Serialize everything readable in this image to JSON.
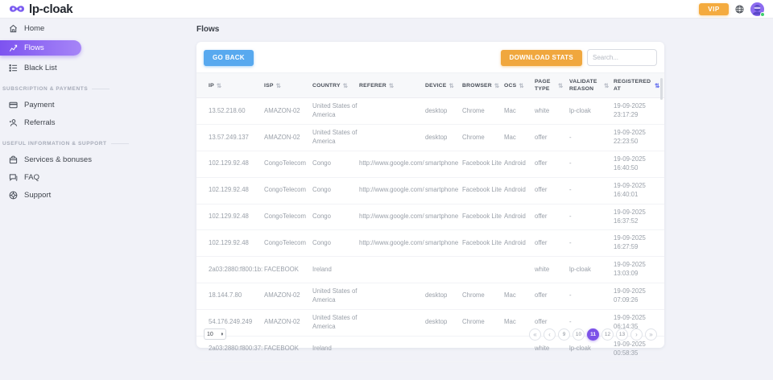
{
  "colors": {
    "accent_purple": "#7c52e8",
    "button_blue": "#58a9ef",
    "button_orange": "#f0a73e",
    "active_sort": "#5b67ee",
    "status_green": "#3ecf6e"
  },
  "brand": {
    "name": "lp-cloak"
  },
  "topbar": {
    "vip_label": "VIP"
  },
  "sidebar": {
    "nav": [
      {
        "label": "Home"
      },
      {
        "label": "Flows"
      },
      {
        "label": "Black List"
      }
    ],
    "sections": [
      {
        "title": "SUBSCRIPTION & PAYMENTS",
        "items": [
          {
            "label": "Payment"
          },
          {
            "label": "Referrals"
          }
        ]
      },
      {
        "title": "USEFUL INFORMATION & SUPPORT",
        "items": [
          {
            "label": "Services & bonuses"
          },
          {
            "label": "FAQ"
          },
          {
            "label": "Support"
          }
        ]
      }
    ]
  },
  "page": {
    "title": "Flows"
  },
  "toolbar": {
    "go_back_label": "GO BACK",
    "download_stats_label": "DOWNLOAD STATS",
    "search_placeholder": "Search..."
  },
  "table": {
    "sort_icon": "⇅",
    "columns": [
      {
        "label": "IP",
        "sorted": false
      },
      {
        "label": "ISP",
        "sorted": false
      },
      {
        "label": "COUNTRY",
        "sorted": false
      },
      {
        "label": "REFERER",
        "sorted": false
      },
      {
        "label": "DEVICE",
        "sorted": false
      },
      {
        "label": "BROWSER",
        "sorted": false
      },
      {
        "label": "OCS",
        "sorted": false
      },
      {
        "label": "PAGE TYPE",
        "sorted": false
      },
      {
        "label": "VALIDATE REASON",
        "sorted": false
      },
      {
        "label": "REGISTERED AT",
        "sorted": true
      }
    ],
    "rows": [
      {
        "ip": "13.52.218.60",
        "isp": "AMAZON-02",
        "country": "United States of America",
        "referer": "",
        "device": "desktop",
        "browser": "Chrome",
        "ocs": "Mac",
        "page_type": "white",
        "validate_reason": "lp-cloak",
        "registered_date": "19-09-2025",
        "registered_time": "23:17:29"
      },
      {
        "ip": "13.57.249.137",
        "isp": "AMAZON-02",
        "country": "United States of America",
        "referer": "",
        "device": "desktop",
        "browser": "Chrome",
        "ocs": "Mac",
        "page_type": "offer",
        "validate_reason": "-",
        "registered_date": "19-09-2025",
        "registered_time": "22:23:50"
      },
      {
        "ip": "102.129.92.48",
        "isp": "CongoTelecom",
        "country": "Congo",
        "referer": "http://www.google.com/",
        "device": "smartphone",
        "browser": "Facebook Lite",
        "ocs": "Android",
        "page_type": "offer",
        "validate_reason": "-",
        "registered_date": "19-09-2025",
        "registered_time": "16:40:50"
      },
      {
        "ip": "102.129.92.48",
        "isp": "CongoTelecom",
        "country": "Congo",
        "referer": "http://www.google.com/",
        "device": "smartphone",
        "browser": "Facebook Lite",
        "ocs": "Android",
        "page_type": "offer",
        "validate_reason": "-",
        "registered_date": "19-09-2025",
        "registered_time": "16:40:01"
      },
      {
        "ip": "102.129.92.48",
        "isp": "CongoTelecom",
        "country": "Congo",
        "referer": "http://www.google.com/",
        "device": "smartphone",
        "browser": "Facebook Lite",
        "ocs": "Android",
        "page_type": "offer",
        "validate_reason": "-",
        "registered_date": "19-09-2025",
        "registered_time": "16:37:52"
      },
      {
        "ip": "102.129.92.48",
        "isp": "CongoTelecom",
        "country": "Congo",
        "referer": "http://www.google.com/",
        "device": "smartphone",
        "browser": "Facebook Lite",
        "ocs": "Android",
        "page_type": "offer",
        "validate_reason": "-",
        "registered_date": "19-09-2025",
        "registered_time": "16:27:59"
      },
      {
        "ip": "2a03:2880:f800:1b::",
        "isp": "FACEBOOK",
        "country": "Ireland",
        "referer": "",
        "device": "",
        "browser": "",
        "ocs": "",
        "page_type": "white",
        "validate_reason": "lp-cloak",
        "registered_date": "19-09-2025",
        "registered_time": "13:03:09"
      },
      {
        "ip": "18.144.7.80",
        "isp": "AMAZON-02",
        "country": "United States of America",
        "referer": "",
        "device": "desktop",
        "browser": "Chrome",
        "ocs": "Mac",
        "page_type": "offer",
        "validate_reason": "-",
        "registered_date": "19-09-2025",
        "registered_time": "07:09:26"
      },
      {
        "ip": "54.176.249.249",
        "isp": "AMAZON-02",
        "country": "United States of America",
        "referer": "",
        "device": "desktop",
        "browser": "Chrome",
        "ocs": "Mac",
        "page_type": "offer",
        "validate_reason": "-",
        "registered_date": "19-09-2025",
        "registered_time": "06:14:35"
      },
      {
        "ip": "2a03:2880:f800:37::",
        "isp": "FACEBOOK",
        "country": "Ireland",
        "referer": "",
        "device": "",
        "browser": "",
        "ocs": "",
        "page_type": "white",
        "validate_reason": "lp-cloak",
        "registered_date": "19-09-2025",
        "registered_time": "00:58:35"
      }
    ]
  },
  "pagination": {
    "page_size": "10",
    "first_label": "«",
    "prev_label": "‹",
    "next_label": "›",
    "last_label": "»",
    "pages": [
      "9",
      "10",
      "11",
      "12",
      "13"
    ],
    "active_page": "11"
  }
}
